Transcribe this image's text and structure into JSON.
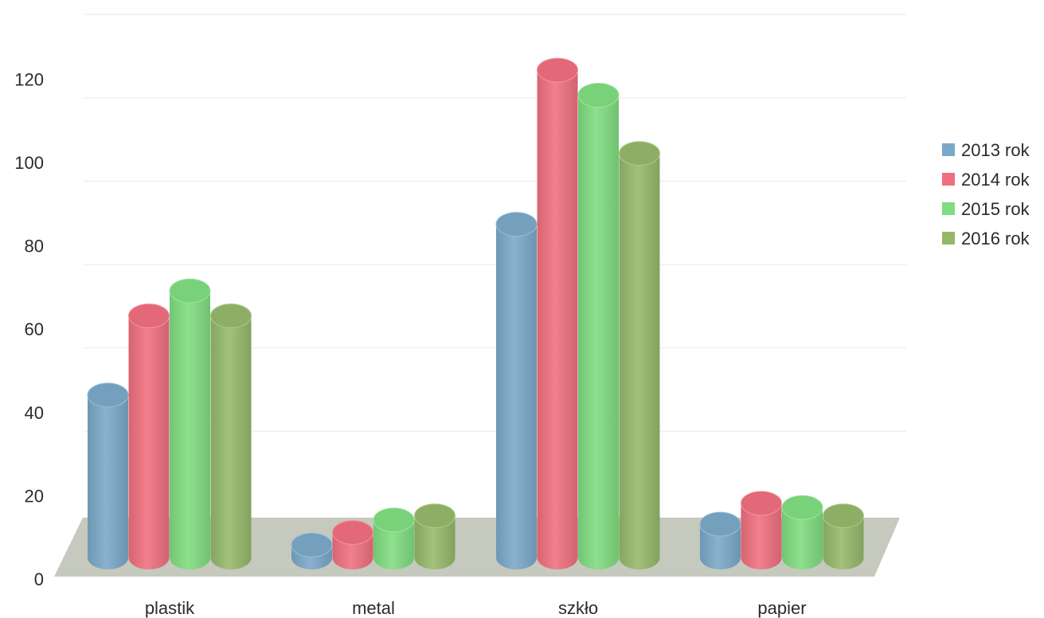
{
  "chart_data": {
    "type": "bar",
    "style": "3d-cylinder",
    "categories": [
      "plastik",
      "metal",
      "szkło",
      "papier"
    ],
    "series": [
      {
        "name": "2013 rok",
        "values": [
          39,
          3,
          80,
          8
        ],
        "color": "#7aa8c8"
      },
      {
        "name": "2014 rok",
        "values": [
          58,
          6,
          117,
          13
        ],
        "color": "#ef6f7e"
      },
      {
        "name": "2015 rok",
        "values": [
          64,
          9,
          111,
          12
        ],
        "color": "#7fdc7f"
      },
      {
        "name": "2016 rok",
        "values": [
          58,
          10,
          97,
          10
        ],
        "color": "#94b86a"
      }
    ],
    "yticks": [
      "0",
      "20",
      "40",
      "60",
      "80",
      "100",
      "120"
    ],
    "ylim": [
      0,
      130
    ],
    "grid": true,
    "legend_position": "right",
    "floor_color": "#c6c9bd"
  }
}
